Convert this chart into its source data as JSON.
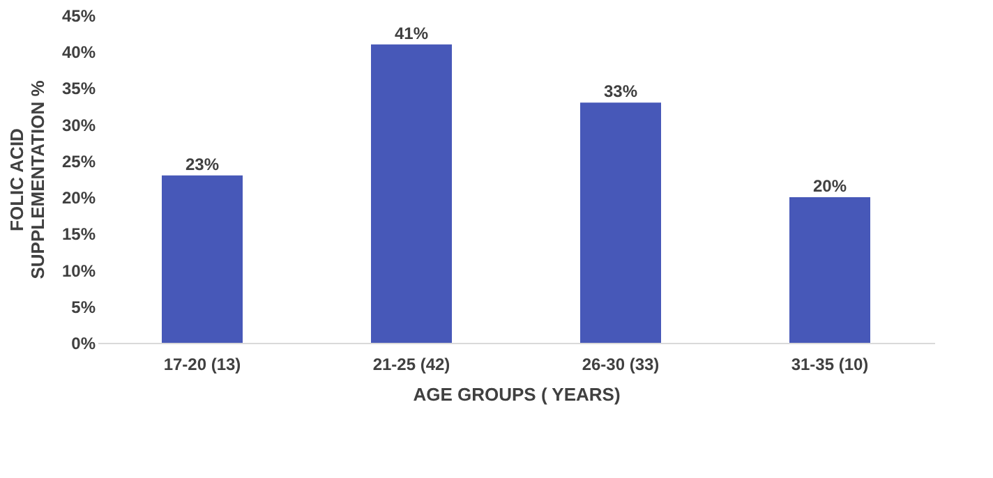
{
  "chart_data": {
    "type": "bar",
    "xlabel": "AGE GROUPS ( YEARS)",
    "ylabel": "FOLIC ACID\nSUPPLEMENTATION %",
    "categories": [
      "17-20 (13)",
      "21-25 (42)",
      "26-30 (33)",
      "31-35 (10)"
    ],
    "values": [
      23,
      41,
      33,
      20
    ],
    "value_labels": [
      "23%",
      "41%",
      "33%",
      "20%"
    ],
    "color": "#4758b8",
    "ylim": [
      0,
      45
    ],
    "yticks": [
      {
        "value": 0,
        "label": "0%"
      },
      {
        "value": 5,
        "label": "5%"
      },
      {
        "value": 10,
        "label": "10%"
      },
      {
        "value": 15,
        "label": "15%"
      },
      {
        "value": 20,
        "label": "20%"
      },
      {
        "value": 25,
        "label": "25%"
      },
      {
        "value": 30,
        "label": "30%"
      },
      {
        "value": 35,
        "label": "35%"
      },
      {
        "value": 40,
        "label": "40%"
      },
      {
        "value": 45,
        "label": "45%"
      }
    ],
    "grid": false
  }
}
